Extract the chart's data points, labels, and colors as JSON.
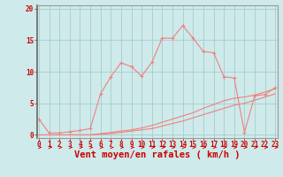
{
  "xlabel": "Vent moyen/en rafales ( km/h )",
  "bg_color": "#ceeaea",
  "grid_color": "#aacccc",
  "line_color": "#f08080",
  "spine_color": "#999999",
  "tick_color": "#cc0000",
  "xlabel_color": "#cc0000",
  "arrow_color": "#cc0000",
  "x_ticks": [
    0,
    1,
    2,
    3,
    4,
    5,
    6,
    7,
    8,
    9,
    10,
    11,
    12,
    13,
    14,
    15,
    16,
    17,
    18,
    19,
    20,
    21,
    22,
    23
  ],
  "y_ticks": [
    0,
    5,
    10,
    15,
    20
  ],
  "xlim": [
    -0.2,
    23.2
  ],
  "ylim": [
    -0.5,
    20.5
  ],
  "curve1_x": [
    0,
    1,
    2,
    3,
    4,
    5,
    6,
    7,
    8,
    9,
    10,
    11,
    12,
    13,
    14,
    15,
    16,
    17,
    18,
    19,
    20,
    21,
    22,
    23
  ],
  "curve1_y": [
    2.5,
    0.3,
    0.3,
    0.5,
    0.7,
    1.0,
    6.5,
    9.2,
    11.4,
    10.8,
    9.3,
    11.5,
    15.3,
    15.3,
    17.3,
    15.3,
    13.2,
    13.0,
    9.2,
    9.0,
    0.4,
    6.2,
    6.4,
    7.5
  ],
  "curve2_x": [
    0,
    1,
    2,
    3,
    4,
    5,
    6,
    7,
    8,
    9,
    10,
    11,
    12,
    13,
    14,
    15,
    16,
    17,
    18,
    19,
    20,
    21,
    22,
    23
  ],
  "curve2_y": [
    0.0,
    0.0,
    0.0,
    0.0,
    0.0,
    0.0,
    0.2,
    0.4,
    0.6,
    0.8,
    1.1,
    1.5,
    2.0,
    2.5,
    3.0,
    3.5,
    4.2,
    4.8,
    5.4,
    5.8,
    6.0,
    6.3,
    6.8,
    7.3
  ],
  "curve3_x": [
    0,
    1,
    2,
    3,
    4,
    5,
    6,
    7,
    8,
    9,
    10,
    11,
    12,
    13,
    14,
    15,
    16,
    17,
    18,
    19,
    20,
    21,
    22,
    23
  ],
  "curve3_y": [
    0.0,
    0.0,
    0.0,
    0.0,
    0.0,
    0.0,
    0.1,
    0.2,
    0.4,
    0.6,
    0.8,
    1.0,
    1.4,
    1.8,
    2.2,
    2.7,
    3.2,
    3.7,
    4.2,
    4.7,
    5.0,
    5.5,
    6.0,
    6.5
  ],
  "tick_fontsize": 5.5,
  "xlabel_fontsize": 7.5
}
